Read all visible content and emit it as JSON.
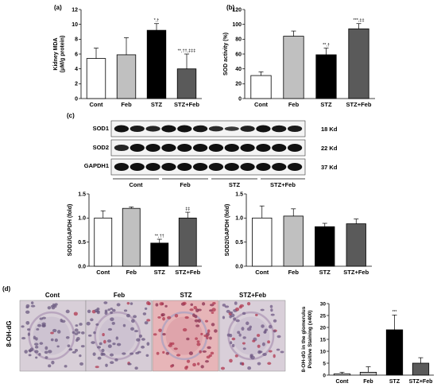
{
  "panels": {
    "a": "(a)",
    "b": "(b)",
    "c": "(c)",
    "d": "(d)"
  },
  "colors": {
    "cont": "#ffffff",
    "feb": "#c0c0c0",
    "stz": "#000000",
    "stzfeb": "#5a5a5a"
  },
  "chart_data": [
    {
      "id": "a",
      "type": "bar",
      "categories": [
        "Cont",
        "Feb",
        "STZ",
        "STZ+Feb"
      ],
      "values": [
        5.4,
        5.9,
        9.2,
        4.0
      ],
      "errors": [
        1.4,
        2.3,
        0.9,
        2.0
      ],
      "annotations": [
        "",
        "",
        "*,†",
        "**,††,‡‡‡"
      ],
      "ylabel": "Kidney MDA\n(μM/g protein)",
      "ylim": [
        0,
        12
      ],
      "yticks": [
        0,
        2,
        4,
        6,
        8,
        10,
        12
      ]
    },
    {
      "id": "b",
      "type": "bar",
      "categories": [
        "Cont",
        "Feb",
        "STZ",
        "STZ+Feb"
      ],
      "values": [
        31,
        84,
        59,
        94
      ],
      "errors": [
        5,
        7,
        9,
        7
      ],
      "annotations": [
        "",
        "",
        "**,†",
        "***,‡‡"
      ],
      "ylabel": "SOD activity (%)",
      "ylim": [
        0,
        120
      ],
      "yticks": [
        0,
        20,
        40,
        60,
        80,
        100,
        120
      ]
    },
    {
      "id": "c1",
      "type": "bar",
      "categories": [
        "Cont",
        "Feb",
        "STZ",
        "STZ+Feb"
      ],
      "values": [
        1.0,
        1.2,
        0.48,
        1.0
      ],
      "errors": [
        0.15,
        0.03,
        0.08,
        0.12
      ],
      "annotations": [
        "",
        "",
        "**,††",
        "‡‡"
      ],
      "ylabel": "SOD1/GAPDH (fold)",
      "ylim": [
        0,
        1.5
      ],
      "yticks": [
        0.0,
        0.5,
        1.0,
        1.5
      ]
    },
    {
      "id": "c2",
      "type": "bar",
      "categories": [
        "Cont",
        "Feb",
        "STZ",
        "STZ+Feb"
      ],
      "values": [
        1.0,
        1.04,
        0.82,
        0.88
      ],
      "errors": [
        0.25,
        0.15,
        0.07,
        0.1
      ],
      "annotations": [
        "",
        "",
        "",
        ""
      ],
      "ylabel": "SOD2/GAPDH (fold)",
      "ylim": [
        0,
        1.5
      ],
      "yticks": [
        0.0,
        0.5,
        1.0,
        1.5
      ]
    },
    {
      "id": "d",
      "type": "bar",
      "categories": [
        "Cont",
        "Feb",
        "STZ",
        "STZ+Feb"
      ],
      "values": [
        0.5,
        1.2,
        19.0,
        5.0
      ],
      "errors": [
        0.7,
        2.3,
        6.2,
        2.3
      ],
      "annotations": [
        "",
        "",
        "***",
        ""
      ],
      "ylabel": "8-OH-dG in the glomerulus\nPositive Staining (x400)",
      "ylim": [
        0,
        30
      ],
      "yticks": [
        0,
        5,
        10,
        15,
        20,
        25,
        30
      ]
    }
  ],
  "blot": {
    "rows": [
      {
        "label": "SOD1",
        "size": "18 Kd"
      },
      {
        "label": "SOD2",
        "size": "22 Kd"
      },
      {
        "label": "GAPDH1",
        "size": "37 Kd"
      }
    ],
    "groups": [
      "Cont",
      "Feb",
      "STZ",
      "STZ+Feb"
    ]
  },
  "micrographs": {
    "side_label": "8-OH-dG",
    "titles": [
      "Cont",
      "Feb",
      "STZ",
      "STZ+Feb"
    ]
  }
}
